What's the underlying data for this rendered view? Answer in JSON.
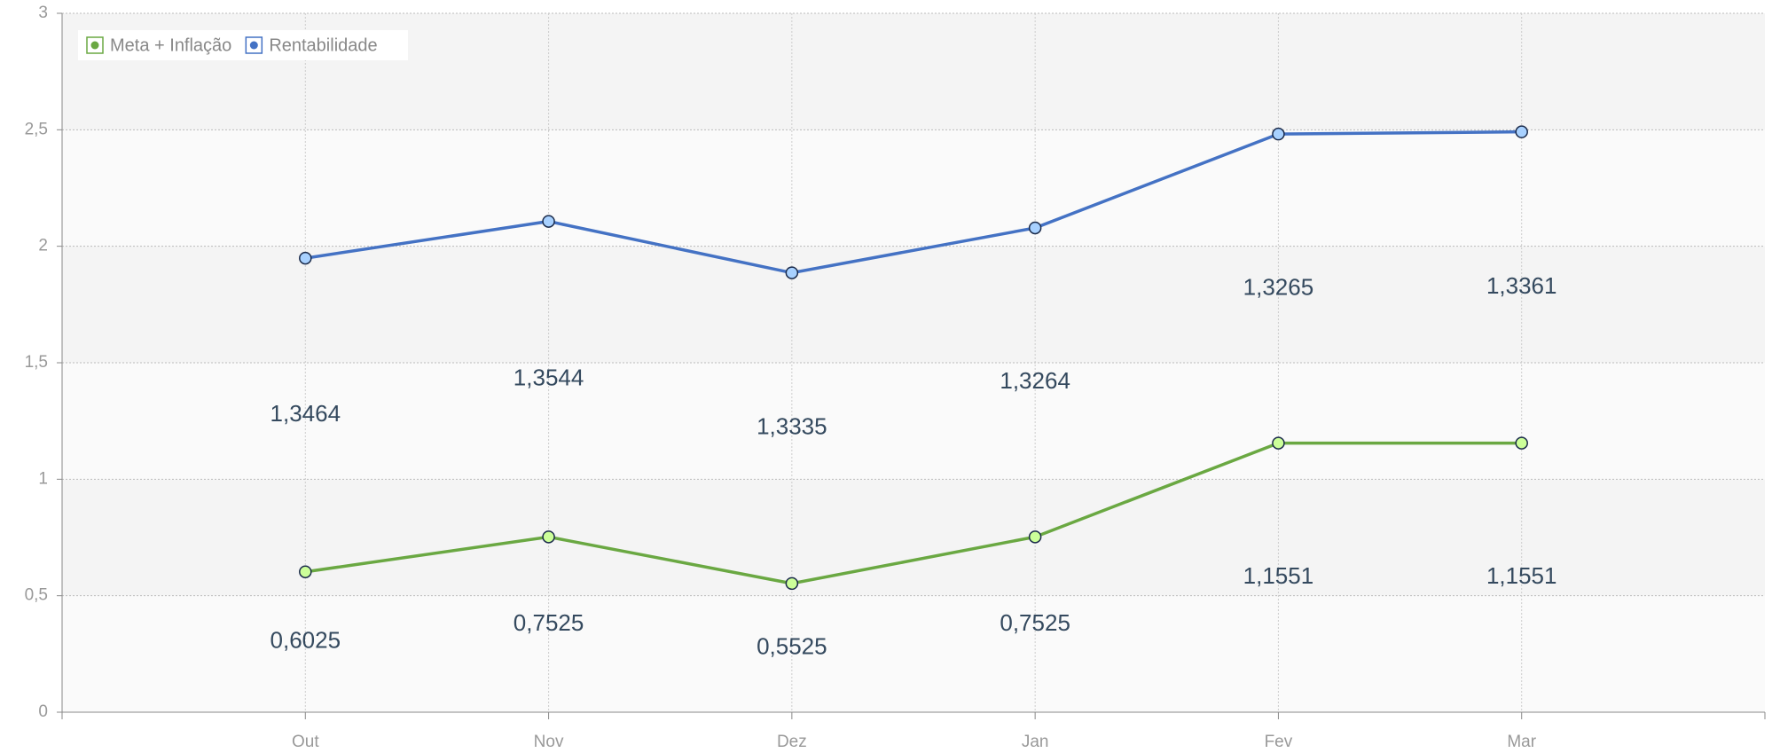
{
  "chart_data": {
    "type": "line",
    "stacked": true,
    "categories": [
      "Out",
      "Nov",
      "Dez",
      "Jan",
      "Fev",
      "Mar"
    ],
    "series": [
      {
        "name": "Meta + Inflação",
        "color": "#6aa842",
        "marker_color": "#ccff99",
        "values": [
          0.6025,
          0.7525,
          0.5525,
          0.7525,
          1.1551,
          1.1551
        ],
        "value_labels": [
          "0,6025",
          "0,7525",
          "0,5525",
          "0,7525",
          "1,1551",
          "1,1551"
        ]
      },
      {
        "name": "Rentabilidade",
        "color": "#4472c4",
        "marker_color": "#a8d1ff",
        "values": [
          1.3464,
          1.3544,
          1.3335,
          1.3264,
          1.3265,
          1.3361
        ],
        "value_labels": [
          "1,3464",
          "1,3544",
          "1,3335",
          "1,3264",
          "1,3265",
          "1,3361"
        ]
      }
    ],
    "ylim": [
      0,
      3
    ],
    "yticks": [
      0,
      {
        "value": 0.5,
        "label": "0,5"
      },
      1,
      {
        "value": 1.5,
        "label": "1,5"
      },
      2,
      {
        "value": 2.5,
        "label": "2,5"
      },
      3
    ],
    "grid": true,
    "legend": "top-left"
  }
}
